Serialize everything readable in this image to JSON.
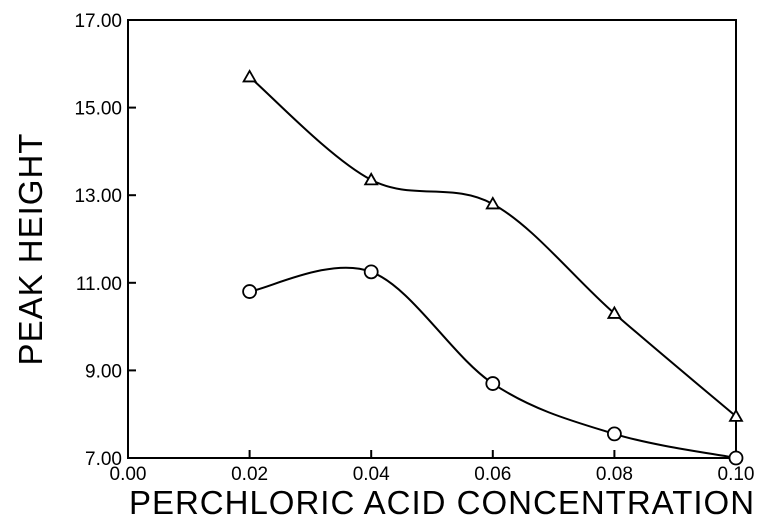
{
  "chart_data": {
    "type": "line",
    "title": "",
    "xlabel": "PERCHLORIC ACID CONCENTRATION",
    "ylabel": "PEAK HEIGHT",
    "xlim": [
      0.0,
      0.1
    ],
    "ylim": [
      7.0,
      17.0
    ],
    "x_ticks": [
      "0.00",
      "0.02",
      "0.04",
      "0.06",
      "0.08",
      "0.10"
    ],
    "y_ticks": [
      "7.00",
      "9.00",
      "11.00",
      "13.00",
      "15.00",
      "17.00"
    ],
    "grid": false,
    "legend": "none",
    "x": [
      0.02,
      0.04,
      0.06,
      0.08,
      0.1
    ],
    "series": [
      {
        "marker": "triangle",
        "values": [
          15.7,
          13.35,
          12.8,
          10.3,
          7.95
        ]
      },
      {
        "marker": "circle",
        "values": [
          10.8,
          11.25,
          8.7,
          7.55,
          7.0
        ]
      }
    ],
    "color": "#000000"
  }
}
